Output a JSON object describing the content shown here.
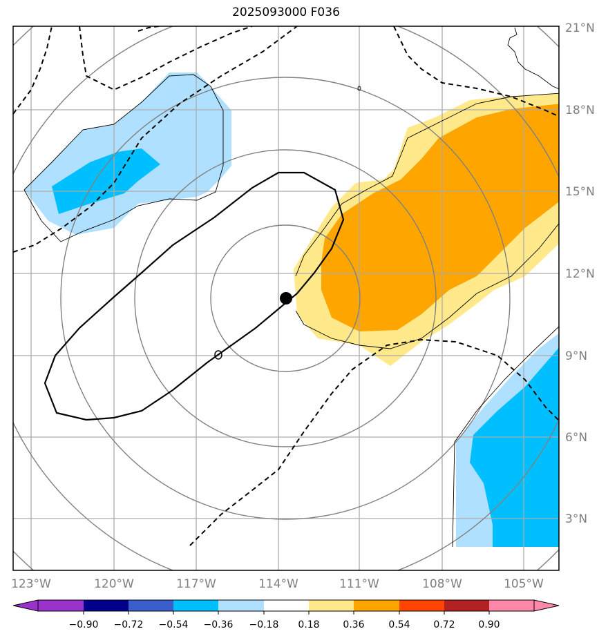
{
  "title": "2025093000 F036",
  "map": {
    "lat_labels": [
      "21°N",
      "18°N",
      "15°N",
      "12°N",
      "9°N",
      "6°N",
      "3°N"
    ],
    "lon_labels": [
      "123°W",
      "120°W",
      "117°W",
      "114°W",
      "111°W",
      "108°W",
      "105°W"
    ],
    "gridlines": true,
    "center_marker": {
      "lat": 11.1,
      "lon": -113.7
    }
  },
  "colorbar": {
    "ticks": [
      "−0.90",
      "−0.72",
      "−0.54",
      "−0.36",
      "−0.18",
      "0.18",
      "0.36",
      "0.54",
      "0.72",
      "0.90"
    ],
    "colors": [
      "#9933cc",
      "#00008b",
      "#3a5fcd",
      "#00bfff",
      "#b0e0ff",
      "#ffffff",
      "#ffe98a",
      "#ffa500",
      "#ff4500",
      "#b22222",
      "#ff88aa"
    ]
  },
  "colors": {
    "light_blue": "#b0e0ff",
    "deep_sky_blue": "#00bfff",
    "light_yellow": "#ffe98a",
    "orange": "#ffa500",
    "range_rings": "#808080"
  }
}
